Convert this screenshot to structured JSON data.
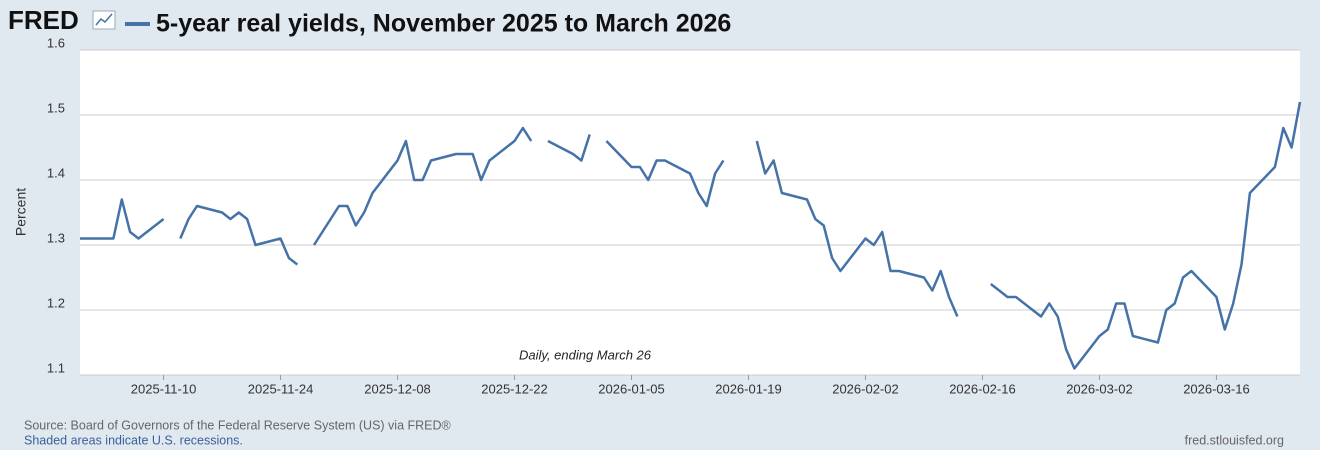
{
  "chart_data": {
    "type": "line",
    "brand": "FRED",
    "title": "5-year real yields, November 2025 to March 2026",
    "y_label": "Percent",
    "annotation": "Daily, ending March 26",
    "source": "Source: Board of Governors of the Federal Reserve System (US) via FRED®",
    "recession_note": "Shaded areas indicate U.S. recessions.",
    "site": "fred.stlouisfed.org",
    "grid": true,
    "ylim": [
      1.1,
      1.6
    ],
    "yticks": [
      1.1,
      1.2,
      1.3,
      1.4,
      1.5,
      1.6
    ],
    "xlim": [
      "2025-10-31",
      "2026-03-26"
    ],
    "xticks": [
      "2025-11-10",
      "2025-11-24",
      "2025-12-08",
      "2025-12-22",
      "2026-01-05",
      "2026-01-19",
      "2026-02-02",
      "2026-02-16",
      "2026-03-02",
      "2026-03-16"
    ],
    "x": [
      "2025-10-31",
      "2025-11-03",
      "2025-11-04",
      "2025-11-05",
      "2025-11-06",
      "2025-11-07",
      "2025-11-10",
      "2025-11-11",
      "2025-11-12",
      "2025-11-13",
      "2025-11-14",
      "2025-11-17",
      "2025-11-18",
      "2025-11-19",
      "2025-11-20",
      "2025-11-21",
      "2025-11-24",
      "2025-11-25",
      "2025-11-26",
      "2025-11-27",
      "2025-11-28",
      "2025-12-01",
      "2025-12-02",
      "2025-12-03",
      "2025-12-04",
      "2025-12-05",
      "2025-12-08",
      "2025-12-09",
      "2025-12-10",
      "2025-12-11",
      "2025-12-12",
      "2025-12-15",
      "2025-12-16",
      "2025-12-17",
      "2025-12-18",
      "2025-12-19",
      "2025-12-22",
      "2025-12-23",
      "2025-12-24",
      "2025-12-25",
      "2025-12-26",
      "2025-12-29",
      "2025-12-30",
      "2025-12-31",
      "2026-01-01",
      "2026-01-02",
      "2026-01-05",
      "2026-01-06",
      "2026-01-07",
      "2026-01-08",
      "2026-01-09",
      "2026-01-12",
      "2026-01-13",
      "2026-01-14",
      "2026-01-15",
      "2026-01-16",
      "2026-01-19",
      "2026-01-20",
      "2026-01-21",
      "2026-01-22",
      "2026-01-23",
      "2026-01-26",
      "2026-01-27",
      "2026-01-28",
      "2026-01-29",
      "2026-01-30",
      "2026-02-02",
      "2026-02-03",
      "2026-02-04",
      "2026-02-05",
      "2026-02-06",
      "2026-02-09",
      "2026-02-10",
      "2026-02-11",
      "2026-02-12",
      "2026-02-13",
      "2026-02-16",
      "2026-02-17",
      "2026-02-18",
      "2026-02-19",
      "2026-02-20",
      "2026-02-23",
      "2026-02-24",
      "2026-02-25",
      "2026-02-26",
      "2026-02-27",
      "2026-03-02",
      "2026-03-03",
      "2026-03-04",
      "2026-03-05",
      "2026-03-06",
      "2026-03-09",
      "2026-03-10",
      "2026-03-11",
      "2026-03-12",
      "2026-03-13",
      "2026-03-16",
      "2026-03-17",
      "2026-03-18",
      "2026-03-19",
      "2026-03-20",
      "2026-03-23",
      "2026-03-24",
      "2026-03-25",
      "2026-03-26"
    ],
    "series": [
      {
        "name": "5-year real yields, November 2025 to March 2026",
        "color": "#4572a7",
        "values": [
          1.31,
          1.31,
          1.31,
          1.37,
          1.32,
          1.31,
          1.34,
          null,
          1.31,
          1.34,
          1.36,
          1.35,
          1.34,
          1.35,
          1.34,
          1.3,
          1.31,
          1.28,
          1.27,
          null,
          1.3,
          1.36,
          1.36,
          1.33,
          1.35,
          1.38,
          1.43,
          1.46,
          1.4,
          1.4,
          1.43,
          1.44,
          1.44,
          1.44,
          1.4,
          1.43,
          1.46,
          1.48,
          1.46,
          null,
          1.46,
          1.44,
          1.43,
          1.47,
          null,
          1.46,
          1.42,
          1.42,
          1.4,
          1.43,
          1.43,
          1.41,
          1.38,
          1.36,
          1.41,
          1.43,
          null,
          1.46,
          1.41,
          1.43,
          1.38,
          1.37,
          1.34,
          1.33,
          1.28,
          1.26,
          1.31,
          1.3,
          1.32,
          1.26,
          1.26,
          1.25,
          1.23,
          1.26,
          1.22,
          1.19,
          null,
          1.24,
          1.23,
          1.22,
          1.22,
          1.19,
          1.21,
          1.19,
          1.14,
          1.11,
          1.16,
          1.17,
          1.21,
          1.21,
          1.16,
          1.15,
          1.2,
          1.21,
          1.25,
          1.26,
          1.22,
          1.17,
          1.21,
          1.27,
          1.38,
          1.42,
          1.48,
          1.45,
          1.52
        ]
      }
    ]
  }
}
